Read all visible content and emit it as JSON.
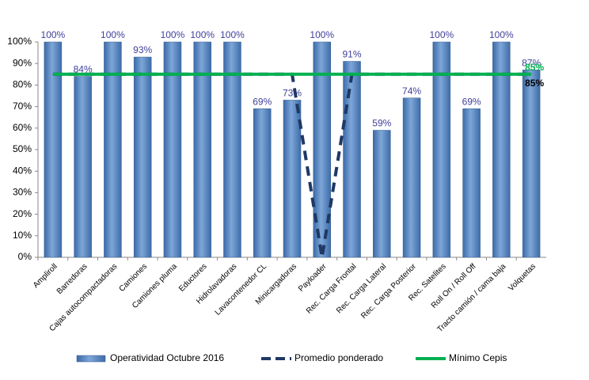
{
  "chart_data": {
    "type": "bar",
    "categories": [
      "Ampliroll",
      "Barredoras",
      "Cajas autocompactadoras",
      "Camiones",
      "Camiones pluma",
      "Eductores",
      "Hidrolavadoras",
      "Lavacontenedor CL",
      "Minicargadoras",
      "Payloader",
      "Rec. Carga Frontal",
      "Rec. Carga Lateral",
      "Rec. Carga Posterior",
      "Rec. Satelites",
      "Roll On / Roll Off",
      "Tracto camión / cama baja",
      "Volquetas"
    ],
    "series": [
      {
        "name": "Operatividad Octubre 2016",
        "type": "bar",
        "color": "#4f81bd",
        "values": [
          100,
          84,
          100,
          93,
          100,
          100,
          100,
          69,
          73,
          100,
          91,
          59,
          74,
          100,
          69,
          100,
          87
        ],
        "value_labels": [
          "100%",
          "84%",
          "100%",
          "93%",
          "100%",
          "100%",
          "100%",
          "69%",
          "73%",
          "100%",
          "91%",
          "59%",
          "74%",
          "100%",
          "69%",
          "100%",
          "87%"
        ]
      },
      {
        "name": "Promedio ponderado",
        "type": "line",
        "color": "#1f3864",
        "dashed": true,
        "values": [
          85,
          85,
          85,
          85,
          85,
          85,
          85,
          85,
          85,
          0,
          85,
          85,
          85,
          85,
          85,
          85,
          85
        ],
        "end_label": "85%"
      },
      {
        "name": "Mínimo Cepis",
        "type": "line",
        "color": "#00b050",
        "values": [
          85,
          85,
          85,
          85,
          85,
          85,
          85,
          85,
          85,
          85,
          85,
          85,
          85,
          85,
          85,
          85,
          85
        ],
        "end_label": "85%"
      }
    ],
    "ylim": [
      0,
      100
    ],
    "yticks": [
      {
        "value": 0,
        "label": "0%"
      },
      {
        "value": 10,
        "label": "10%"
      },
      {
        "value": 20,
        "label": "20%"
      },
      {
        "value": 30,
        "label": "30%"
      },
      {
        "value": 40,
        "label": "40%"
      },
      {
        "value": 50,
        "label": "50%"
      },
      {
        "value": 60,
        "label": "60%"
      },
      {
        "value": 70,
        "label": "70%"
      },
      {
        "value": 80,
        "label": "80%"
      },
      {
        "value": 90,
        "label": "90%"
      },
      {
        "value": 100,
        "label": "100%"
      }
    ],
    "grid": false,
    "legend": "bottom"
  }
}
